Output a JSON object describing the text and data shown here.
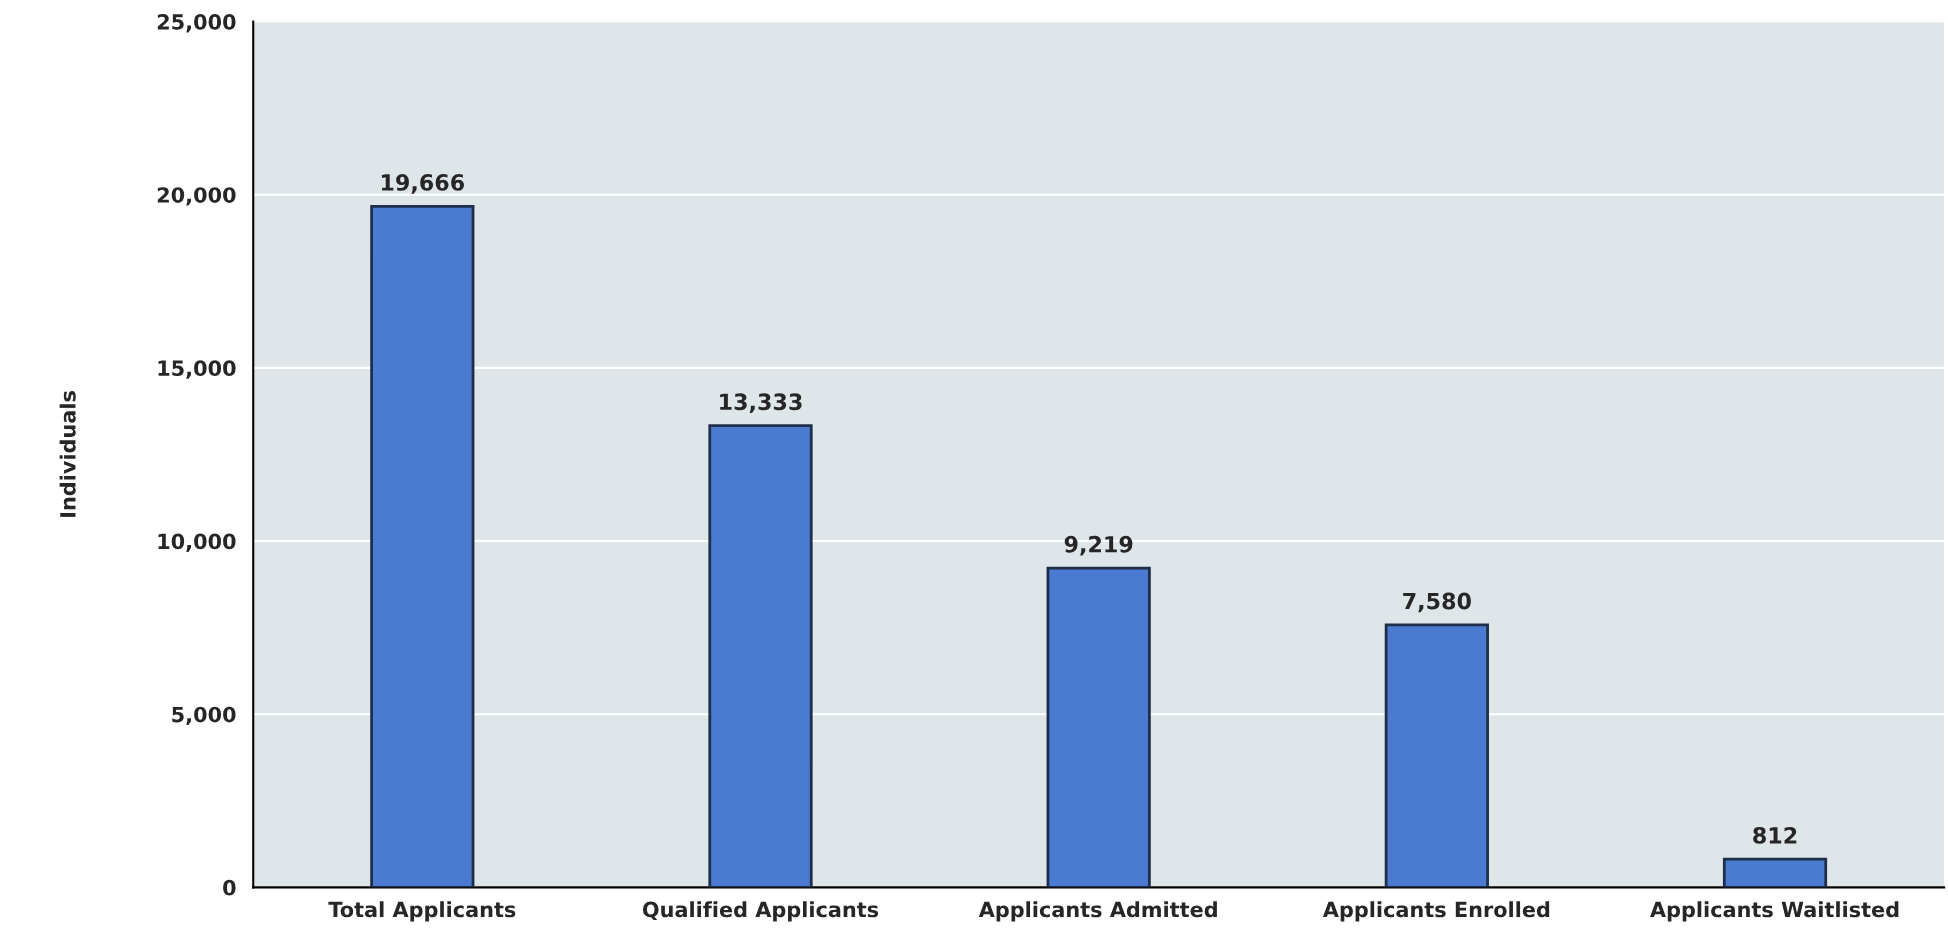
{
  "chart_data": {
    "type": "bar",
    "ylabel": "Individuals",
    "categories": [
      "Total Applicants",
      "Qualified Applicants",
      "Applicants Admitted",
      "Applicants Enrolled",
      "Applicants Waitlisted"
    ],
    "values": [
      19666,
      13333,
      9219,
      7580,
      812
    ],
    "color": "#4a7bd0",
    "ylim": [
      0,
      25000
    ],
    "yticks": [
      {
        "value": 0,
        "label": "0"
      },
      {
        "value": 5000,
        "label": "5,000"
      },
      {
        "value": 10000,
        "label": "10,000"
      },
      {
        "value": 15000,
        "label": "15,000"
      },
      {
        "value": 20000,
        "label": "20,000"
      },
      {
        "value": 25000,
        "label": "25,000"
      }
    ],
    "value_labels": [
      "19,666",
      "13,333",
      "9,219",
      "7,580",
      "812"
    ],
    "grid": "y"
  }
}
